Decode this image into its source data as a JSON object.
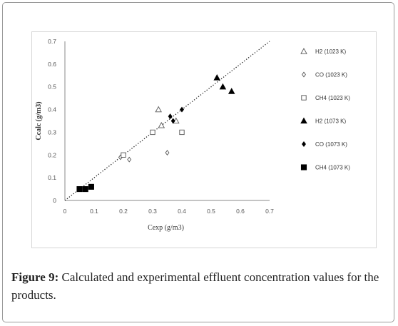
{
  "figure": {
    "label": "Figure 9:",
    "caption": " Calculated and experimental effluent concentration values for the products."
  },
  "chart_data": {
    "type": "scatter",
    "xlabel": "Cexp (g/m3)",
    "ylabel": "Ccalc (g/m3)",
    "xlim": [
      0,
      0.7
    ],
    "ylim": [
      0,
      0.7
    ],
    "x_ticks": [
      "0",
      "0.1",
      "0.2",
      "0.3",
      "0.4",
      "0.5",
      "0.6",
      "0.7"
    ],
    "y_ticks": [
      "0",
      "0.1",
      "0.2",
      "0.3",
      "0.4",
      "0.5",
      "0.6",
      "0.7"
    ],
    "grid": false,
    "legend_position": "right",
    "reference_line": {
      "style": "dotted",
      "x": [
        0,
        0.7
      ],
      "y": [
        0,
        0.7
      ]
    },
    "series": [
      {
        "name": "H2 (1023 K)",
        "marker": "open-triangle",
        "x": [
          0.32,
          0.33,
          0.38
        ],
        "y": [
          0.4,
          0.33,
          0.35
        ]
      },
      {
        "name": "CO (1023 K)",
        "marker": "open-diamond",
        "x": [
          0.19,
          0.22,
          0.35
        ],
        "y": [
          0.19,
          0.18,
          0.21
        ]
      },
      {
        "name": "CH4 (1023 K)",
        "marker": "open-square",
        "x": [
          0.2,
          0.3,
          0.4
        ],
        "y": [
          0.2,
          0.3,
          0.3
        ]
      },
      {
        "name": "H2 (1073 K)",
        "marker": "filled-triangle",
        "x": [
          0.52,
          0.54,
          0.57
        ],
        "y": [
          0.54,
          0.5,
          0.48
        ]
      },
      {
        "name": "CO (1073 K)",
        "marker": "filled-diamond",
        "x": [
          0.36,
          0.37,
          0.4
        ],
        "y": [
          0.37,
          0.35,
          0.4
        ]
      },
      {
        "name": "CH4 (1073 K)",
        "marker": "filled-square",
        "x": [
          0.05,
          0.07,
          0.09
        ],
        "y": [
          0.05,
          0.05,
          0.06
        ]
      }
    ]
  }
}
